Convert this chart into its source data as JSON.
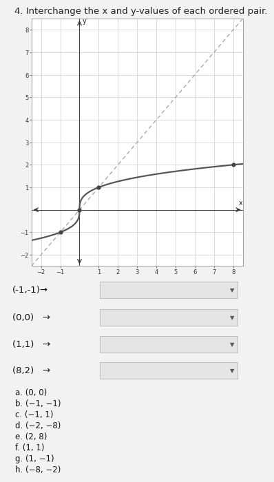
{
  "title": "4. Interchange the x and y-values of each ordered pair.",
  "xlim": [
    -2.5,
    8.5
  ],
  "ylim": [
    -2.5,
    8.5
  ],
  "xticks": [
    -2,
    -1,
    1,
    2,
    3,
    4,
    5,
    6,
    7,
    8
  ],
  "yticks": [
    -2,
    -1,
    1,
    2,
    3,
    4,
    5,
    6,
    7,
    8
  ],
  "curve_color": "#555555",
  "dashed_color": "#aaaaaa",
  "bg_color": "#ffffff",
  "fig_bg_color": "#f2f2f2",
  "grid_color": "#cccccc",
  "spine_color": "#999999",
  "q_labels": [
    "(-1,-1)→",
    "(0,0)   →",
    "(1,1)   →",
    "(8,2)   →"
  ],
  "answers": [
    "a. (0, 0)",
    "b. (−1, −1)",
    "c. (−1, 1)",
    "d. (−2, −8)",
    "e. (2, 8)",
    "f. (1, 1)",
    "g. (1, −1)",
    "h. (−8, −2)"
  ],
  "answer_fontsize": 8.5,
  "question_fontsize": 9.5,
  "title_fontsize": 9.5,
  "dot_color": "#444444"
}
